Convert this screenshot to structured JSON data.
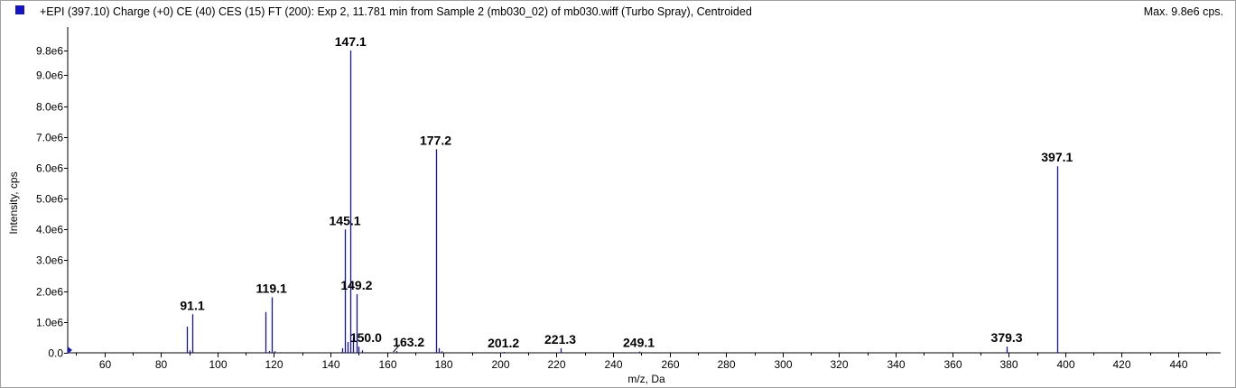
{
  "header": {
    "title": "+EPI (397.10) Charge (+0) CE (40) CES (15) FT (200): Exp 2, 11.781 min from Sample 2 (mb030_02) of mb030.wiff (Turbo Spray), Centroided",
    "max_label": "Max. 9.8e6 cps."
  },
  "colors": {
    "series": "#1414a0",
    "swatch": "#1414c8"
  },
  "chart_data": {
    "type": "bar",
    "title": "+EPI (397.10) Charge (+0) CE (40) CES (15) FT (200): Exp 2, 11.781 min from Sample 2 (mb030_02) of mb030.wiff (Turbo Spray), Centroided",
    "xlabel": "m/z, Da",
    "ylabel": "Intensity, cps",
    "xlim": [
      47,
      455
    ],
    "ylim": [
      0,
      10000000.0
    ],
    "x_ticks": [
      60,
      80,
      100,
      120,
      140,
      160,
      180,
      200,
      220,
      240,
      260,
      280,
      300,
      320,
      340,
      360,
      380,
      400,
      420,
      440
    ],
    "y_ticks": [
      {
        "value": 0,
        "label": "0.0"
      },
      {
        "value": 1000000,
        "label": "1.0e6"
      },
      {
        "value": 2000000,
        "label": "2.0e6"
      },
      {
        "value": 3000000,
        "label": "3.0e6"
      },
      {
        "value": 4000000,
        "label": "4.0e6"
      },
      {
        "value": 5000000,
        "label": "5.0e6"
      },
      {
        "value": 6000000,
        "label": "6.0e6"
      },
      {
        "value": 7000000,
        "label": "7.0e6"
      },
      {
        "value": 8000000,
        "label": "8.0e6"
      },
      {
        "value": 9000000,
        "label": "9.0e6"
      },
      {
        "value": 9800000,
        "label": "9.8e6"
      }
    ],
    "peaks": [
      {
        "x": 89.1,
        "y": 850000
      },
      {
        "x": 90.1,
        "y": 80000
      },
      {
        "x": 91.1,
        "y": 1250000
      },
      {
        "x": 117.1,
        "y": 1320000
      },
      {
        "x": 118.1,
        "y": 60000
      },
      {
        "x": 119.1,
        "y": 1800000
      },
      {
        "x": 120.1,
        "y": 50000
      },
      {
        "x": 144.1,
        "y": 150000
      },
      {
        "x": 145.1,
        "y": 4000000
      },
      {
        "x": 146.1,
        "y": 350000
      },
      {
        "x": 147.1,
        "y": 9800000
      },
      {
        "x": 148.1,
        "y": 500000
      },
      {
        "x": 149.2,
        "y": 1900000
      },
      {
        "x": 150.0,
        "y": 200000
      },
      {
        "x": 151.1,
        "y": 80000
      },
      {
        "x": 163.2,
        "y": 60000
      },
      {
        "x": 177.2,
        "y": 6600000
      },
      {
        "x": 178.2,
        "y": 150000
      },
      {
        "x": 179.2,
        "y": 50000
      },
      {
        "x": 201.2,
        "y": 30000
      },
      {
        "x": 221.3,
        "y": 150000
      },
      {
        "x": 249.1,
        "y": 40000
      },
      {
        "x": 379.3,
        "y": 200000
      },
      {
        "x": 397.1,
        "y": 6050000
      }
    ],
    "labels": [
      {
        "text": "91.1",
        "x": 91.1,
        "y": 1250000
      },
      {
        "text": "119.1",
        "x": 119.1,
        "y": 1800000
      },
      {
        "text": "145.1",
        "x": 145.1,
        "y": 4000000
      },
      {
        "text": "147.1",
        "x": 147.1,
        "y": 9800000
      },
      {
        "text": "149.2",
        "x": 149.2,
        "y": 1900000
      },
      {
        "text": "150.0",
        "x": 150.0,
        "y": 200000
      },
      {
        "text": "163.2",
        "x": 163.2,
        "y": 60000
      },
      {
        "text": "177.2",
        "x": 177.2,
        "y": 6600000
      },
      {
        "text": "201.2",
        "x": 201.2,
        "y": 30000
      },
      {
        "text": "221.3",
        "x": 221.3,
        "y": 150000
      },
      {
        "text": "249.1",
        "x": 249.1,
        "y": 40000
      },
      {
        "text": "379.3",
        "x": 379.3,
        "y": 200000
      },
      {
        "text": "397.1",
        "x": 397.1,
        "y": 6050000
      }
    ]
  }
}
